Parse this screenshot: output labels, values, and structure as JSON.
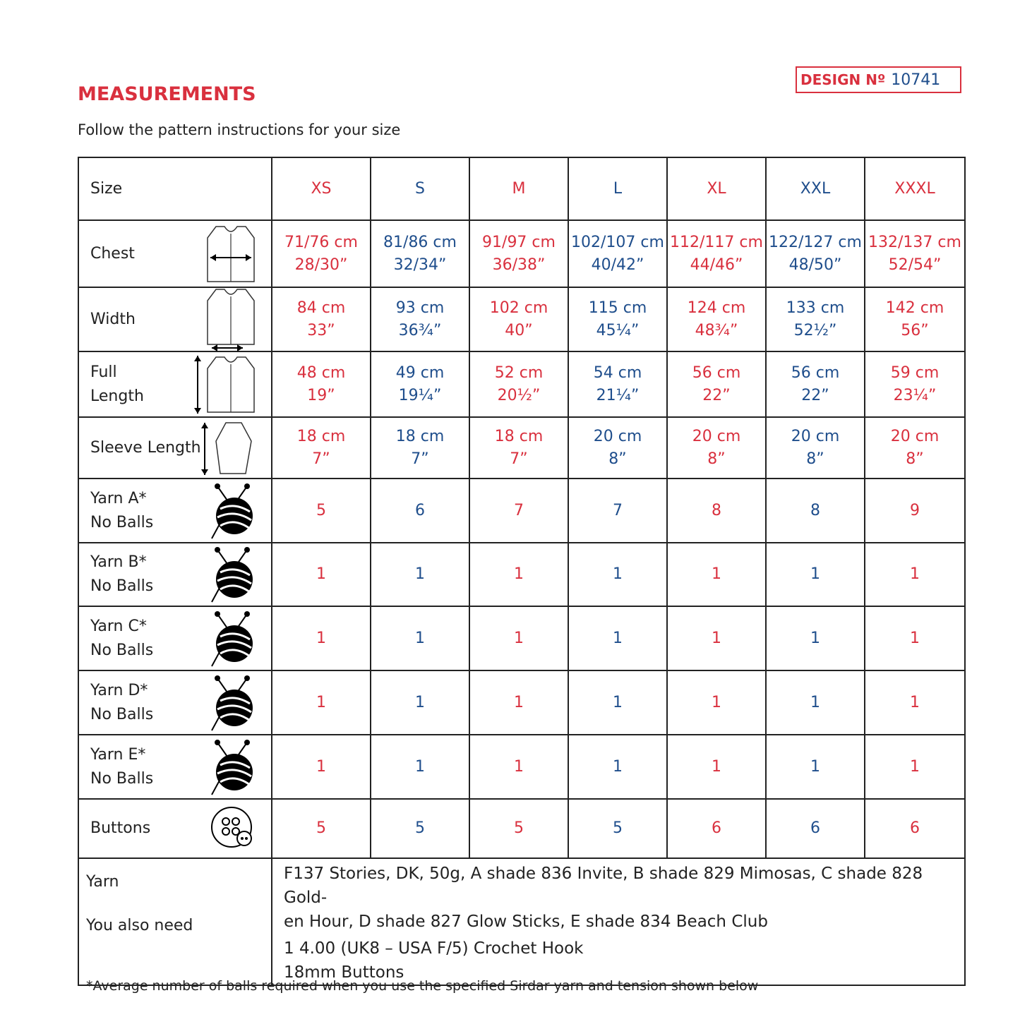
{
  "header": {
    "design_label": "DESIGN Nº",
    "design_number": "10741",
    "title": "MEASUREMENTS",
    "subtitle": "Follow the pattern instructions for your size"
  },
  "table": {
    "size_label": "Size",
    "sizes": [
      "XS",
      "S",
      "M",
      "L",
      "XL",
      "XXL",
      "XXXL"
    ],
    "rows": [
      {
        "label": [
          "Chest"
        ],
        "cells": [
          [
            "71/76 cm",
            "28/30”"
          ],
          [
            "81/86 cm",
            "32/34”"
          ],
          [
            "91/97 cm",
            "36/38”"
          ],
          [
            "102/107 cm",
            "40/42”"
          ],
          [
            "112/117 cm",
            "44/46”"
          ],
          [
            "122/127 cm",
            "48/50”"
          ],
          [
            "132/137 cm",
            "52/54”"
          ]
        ]
      },
      {
        "label": [
          "Width"
        ],
        "cells": [
          [
            "84 cm",
            "33”"
          ],
          [
            "93 cm",
            "36¾”"
          ],
          [
            "102 cm",
            "40”"
          ],
          [
            "115 cm",
            "45¼”"
          ],
          [
            "124 cm",
            "48¾”"
          ],
          [
            "133 cm",
            "52½”"
          ],
          [
            "142 cm",
            "56”"
          ]
        ]
      },
      {
        "label": [
          "Full",
          "Length"
        ],
        "cells": [
          [
            "48 cm",
            "19”"
          ],
          [
            "49 cm",
            "19¼”"
          ],
          [
            "52 cm",
            "20½”"
          ],
          [
            "54 cm",
            "21¼”"
          ],
          [
            "56 cm",
            "22”"
          ],
          [
            "56 cm",
            "22”"
          ],
          [
            "59 cm",
            "23¼”"
          ]
        ]
      },
      {
        "label": [
          "Sleeve Length"
        ],
        "cells": [
          [
            "18 cm",
            "7”"
          ],
          [
            "18 cm",
            "7”"
          ],
          [
            "18 cm",
            "7”"
          ],
          [
            "20 cm",
            "8”"
          ],
          [
            "20 cm",
            "8”"
          ],
          [
            "20 cm",
            "8”"
          ],
          [
            "20 cm",
            "8”"
          ]
        ]
      },
      {
        "label": [
          "Yarn A*",
          "No Balls"
        ],
        "cells": [
          [
            "5"
          ],
          [
            "6"
          ],
          [
            "7"
          ],
          [
            "7"
          ],
          [
            "8"
          ],
          [
            "8"
          ],
          [
            "9"
          ]
        ]
      },
      {
        "label": [
          "Yarn B*",
          "No Balls"
        ],
        "cells": [
          [
            "1"
          ],
          [
            "1"
          ],
          [
            "1"
          ],
          [
            "1"
          ],
          [
            "1"
          ],
          [
            "1"
          ],
          [
            "1"
          ]
        ]
      },
      {
        "label": [
          "Yarn C*",
          "No Balls"
        ],
        "cells": [
          [
            "1"
          ],
          [
            "1"
          ],
          [
            "1"
          ],
          [
            "1"
          ],
          [
            "1"
          ],
          [
            "1"
          ],
          [
            "1"
          ]
        ]
      },
      {
        "label": [
          "Yarn D*",
          "No Balls"
        ],
        "cells": [
          [
            "1"
          ],
          [
            "1"
          ],
          [
            "1"
          ],
          [
            "1"
          ],
          [
            "1"
          ],
          [
            "1"
          ],
          [
            "1"
          ]
        ]
      },
      {
        "label": [
          "Yarn E*",
          "No Balls"
        ],
        "cells": [
          [
            "1"
          ],
          [
            "1"
          ],
          [
            "1"
          ],
          [
            "1"
          ],
          [
            "1"
          ],
          [
            "1"
          ],
          [
            "1"
          ]
        ]
      },
      {
        "label": [
          "Buttons"
        ],
        "cells": [
          [
            "5"
          ],
          [
            "5"
          ],
          [
            "5"
          ],
          [
            "5"
          ],
          [
            "6"
          ],
          [
            "6"
          ],
          [
            "6"
          ]
        ]
      }
    ],
    "yarn_label": "Yarn",
    "yarn_text": [
      "F137 Stories, DK, 50g,  A shade 836 Invite, B shade 829 Mimosas, C shade 828 Gold-",
      "en Hour, D shade 827 Glow Sticks, E shade 834 Beach Club"
    ],
    "need_label": "You also need",
    "need_text": [
      "1 4.00 (UK8 – USA F/5) Crochet Hook",
      "18mm Buttons"
    ]
  },
  "footnote": "*Average number of balls required when you use the specified Sirdar yarn and tension shown below"
}
